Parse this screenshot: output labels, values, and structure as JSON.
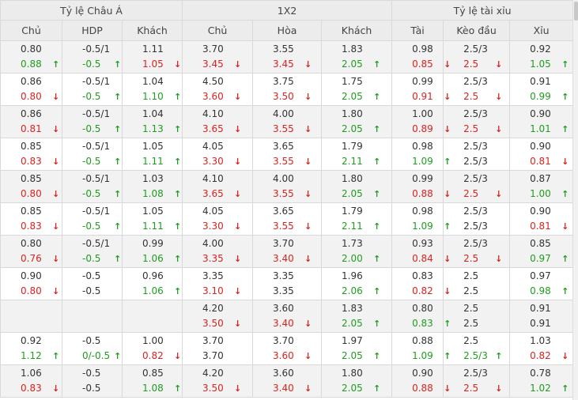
{
  "groups": [
    "Tỷ lệ Châu Á",
    "1X2",
    "Tỷ lệ tài xỉu"
  ],
  "columns": [
    "Chủ",
    "HDP",
    "Khách",
    "Chủ",
    "Hòa",
    "Khách",
    "Tài",
    "Kèo đầu",
    "Xỉu"
  ],
  "colors": {
    "up": "#1f9d1f",
    "down": "#d9231f",
    "header_bg": "#ececec",
    "row_alt_bg": "#f2f2f2",
    "border": "#d9d9d9"
  },
  "rows": [
    {
      "cells": [
        [
          {
            "v": "0.80",
            "c": ""
          },
          {
            "v": "0.88",
            "c": "up"
          }
        ],
        [
          {
            "v": "-0.5/1",
            "c": ""
          },
          {
            "v": "-0.5",
            "c": "up"
          }
        ],
        [
          {
            "v": "1.11",
            "c": ""
          },
          {
            "v": "1.05",
            "c": "down"
          }
        ],
        [
          {
            "v": "3.70",
            "c": ""
          },
          {
            "v": "3.45",
            "c": "down"
          }
        ],
        [
          {
            "v": "3.55",
            "c": ""
          },
          {
            "v": "3.45",
            "c": "down"
          }
        ],
        [
          {
            "v": "1.83",
            "c": ""
          },
          {
            "v": "2.05",
            "c": "up"
          }
        ],
        [
          {
            "v": "0.98",
            "c": ""
          },
          {
            "v": "0.85",
            "c": "down"
          }
        ],
        [
          {
            "v": "2.5/3",
            "c": ""
          },
          {
            "v": "2.5",
            "c": "down"
          }
        ],
        [
          {
            "v": "0.92",
            "c": ""
          },
          {
            "v": "1.05",
            "c": "up"
          }
        ]
      ]
    },
    {
      "cells": [
        [
          {
            "v": "0.86",
            "c": ""
          },
          {
            "v": "0.80",
            "c": "down"
          }
        ],
        [
          {
            "v": "-0.5/1",
            "c": ""
          },
          {
            "v": "-0.5",
            "c": "up"
          }
        ],
        [
          {
            "v": "1.04",
            "c": ""
          },
          {
            "v": "1.10",
            "c": "up"
          }
        ],
        [
          {
            "v": "4.50",
            "c": ""
          },
          {
            "v": "3.60",
            "c": "down"
          }
        ],
        [
          {
            "v": "3.75",
            "c": ""
          },
          {
            "v": "3.50",
            "c": "down"
          }
        ],
        [
          {
            "v": "1.75",
            "c": ""
          },
          {
            "v": "2.05",
            "c": "up"
          }
        ],
        [
          {
            "v": "0.99",
            "c": ""
          },
          {
            "v": "0.91",
            "c": "down"
          }
        ],
        [
          {
            "v": "2.5/3",
            "c": ""
          },
          {
            "v": "2.5",
            "c": "down"
          }
        ],
        [
          {
            "v": "0.91",
            "c": ""
          },
          {
            "v": "0.99",
            "c": "up"
          }
        ]
      ]
    },
    {
      "cells": [
        [
          {
            "v": "0.86",
            "c": ""
          },
          {
            "v": "0.81",
            "c": "down"
          }
        ],
        [
          {
            "v": "-0.5/1",
            "c": ""
          },
          {
            "v": "-0.5",
            "c": "up"
          }
        ],
        [
          {
            "v": "1.04",
            "c": ""
          },
          {
            "v": "1.13",
            "c": "up"
          }
        ],
        [
          {
            "v": "4.10",
            "c": ""
          },
          {
            "v": "3.65",
            "c": "down"
          }
        ],
        [
          {
            "v": "4.00",
            "c": ""
          },
          {
            "v": "3.55",
            "c": "down"
          }
        ],
        [
          {
            "v": "1.80",
            "c": ""
          },
          {
            "v": "2.05",
            "c": "up"
          }
        ],
        [
          {
            "v": "1.00",
            "c": ""
          },
          {
            "v": "0.89",
            "c": "down"
          }
        ],
        [
          {
            "v": "2.5/3",
            "c": ""
          },
          {
            "v": "2.5",
            "c": "down"
          }
        ],
        [
          {
            "v": "0.90",
            "c": ""
          },
          {
            "v": "1.01",
            "c": "up"
          }
        ]
      ]
    },
    {
      "cells": [
        [
          {
            "v": "0.85",
            "c": ""
          },
          {
            "v": "0.83",
            "c": "down"
          }
        ],
        [
          {
            "v": "-0.5/1",
            "c": ""
          },
          {
            "v": "-0.5",
            "c": "up"
          }
        ],
        [
          {
            "v": "1.05",
            "c": ""
          },
          {
            "v": "1.11",
            "c": "up"
          }
        ],
        [
          {
            "v": "4.05",
            "c": ""
          },
          {
            "v": "3.30",
            "c": "down"
          }
        ],
        [
          {
            "v": "3.65",
            "c": ""
          },
          {
            "v": "3.55",
            "c": "down"
          }
        ],
        [
          {
            "v": "1.79",
            "c": ""
          },
          {
            "v": "2.11",
            "c": "up"
          }
        ],
        [
          {
            "v": "0.98",
            "c": ""
          },
          {
            "v": "1.09",
            "c": "up"
          }
        ],
        [
          {
            "v": "2.5/3",
            "c": ""
          },
          {
            "v": "2.5/3",
            "c": ""
          }
        ],
        [
          {
            "v": "0.90",
            "c": ""
          },
          {
            "v": "0.81",
            "c": "down"
          }
        ]
      ]
    },
    {
      "cells": [
        [
          {
            "v": "0.85",
            "c": ""
          },
          {
            "v": "0.80",
            "c": "down"
          }
        ],
        [
          {
            "v": "-0.5/1",
            "c": ""
          },
          {
            "v": "-0.5",
            "c": "up"
          }
        ],
        [
          {
            "v": "1.03",
            "c": ""
          },
          {
            "v": "1.08",
            "c": "up"
          }
        ],
        [
          {
            "v": "4.10",
            "c": ""
          },
          {
            "v": "3.65",
            "c": "down"
          }
        ],
        [
          {
            "v": "4.00",
            "c": ""
          },
          {
            "v": "3.55",
            "c": "down"
          }
        ],
        [
          {
            "v": "1.80",
            "c": ""
          },
          {
            "v": "2.05",
            "c": "up"
          }
        ],
        [
          {
            "v": "0.99",
            "c": ""
          },
          {
            "v": "0.88",
            "c": "down"
          }
        ],
        [
          {
            "v": "2.5/3",
            "c": ""
          },
          {
            "v": "2.5",
            "c": "down"
          }
        ],
        [
          {
            "v": "0.87",
            "c": ""
          },
          {
            "v": "1.00",
            "c": "up"
          }
        ]
      ]
    },
    {
      "cells": [
        [
          {
            "v": "0.85",
            "c": ""
          },
          {
            "v": "0.83",
            "c": "down"
          }
        ],
        [
          {
            "v": "-0.5/1",
            "c": ""
          },
          {
            "v": "-0.5",
            "c": "up"
          }
        ],
        [
          {
            "v": "1.05",
            "c": ""
          },
          {
            "v": "1.11",
            "c": "up"
          }
        ],
        [
          {
            "v": "4.05",
            "c": ""
          },
          {
            "v": "3.30",
            "c": "down"
          }
        ],
        [
          {
            "v": "3.65",
            "c": ""
          },
          {
            "v": "3.55",
            "c": "down"
          }
        ],
        [
          {
            "v": "1.79",
            "c": ""
          },
          {
            "v": "2.11",
            "c": "up"
          }
        ],
        [
          {
            "v": "0.98",
            "c": ""
          },
          {
            "v": "1.09",
            "c": "up"
          }
        ],
        [
          {
            "v": "2.5/3",
            "c": ""
          },
          {
            "v": "2.5/3",
            "c": ""
          }
        ],
        [
          {
            "v": "0.90",
            "c": ""
          },
          {
            "v": "0.81",
            "c": "down"
          }
        ]
      ]
    },
    {
      "cells": [
        [
          {
            "v": "0.80",
            "c": ""
          },
          {
            "v": "0.76",
            "c": "down"
          }
        ],
        [
          {
            "v": "-0.5/1",
            "c": ""
          },
          {
            "v": "-0.5",
            "c": "up"
          }
        ],
        [
          {
            "v": "0.99",
            "c": ""
          },
          {
            "v": "1.06",
            "c": "up"
          }
        ],
        [
          {
            "v": "4.00",
            "c": ""
          },
          {
            "v": "3.35",
            "c": "down"
          }
        ],
        [
          {
            "v": "3.70",
            "c": ""
          },
          {
            "v": "3.40",
            "c": "down"
          }
        ],
        [
          {
            "v": "1.73",
            "c": ""
          },
          {
            "v": "2.00",
            "c": "up"
          }
        ],
        [
          {
            "v": "0.93",
            "c": ""
          },
          {
            "v": "0.84",
            "c": "down"
          }
        ],
        [
          {
            "v": "2.5/3",
            "c": ""
          },
          {
            "v": "2.5",
            "c": "down"
          }
        ],
        [
          {
            "v": "0.85",
            "c": ""
          },
          {
            "v": "0.97",
            "c": "up"
          }
        ]
      ]
    },
    {
      "cells": [
        [
          {
            "v": "0.90",
            "c": ""
          },
          {
            "v": "0.80",
            "c": "down"
          }
        ],
        [
          {
            "v": "-0.5",
            "c": ""
          },
          {
            "v": "-0.5",
            "c": ""
          }
        ],
        [
          {
            "v": "0.96",
            "c": ""
          },
          {
            "v": "1.06",
            "c": "up"
          }
        ],
        [
          {
            "v": "3.35",
            "c": ""
          },
          {
            "v": "3.10",
            "c": "down"
          }
        ],
        [
          {
            "v": "3.35",
            "c": ""
          },
          {
            "v": "3.35",
            "c": ""
          }
        ],
        [
          {
            "v": "1.96",
            "c": ""
          },
          {
            "v": "2.06",
            "c": "up"
          }
        ],
        [
          {
            "v": "0.83",
            "c": ""
          },
          {
            "v": "0.82",
            "c": "down"
          }
        ],
        [
          {
            "v": "2.5",
            "c": ""
          },
          {
            "v": "2.5",
            "c": ""
          }
        ],
        [
          {
            "v": "0.97",
            "c": ""
          },
          {
            "v": "0.98",
            "c": "up"
          }
        ]
      ]
    },
    {
      "cells": [
        [],
        [],
        [],
        [
          {
            "v": "4.20",
            "c": ""
          },
          {
            "v": "3.50",
            "c": "down"
          }
        ],
        [
          {
            "v": "3.60",
            "c": ""
          },
          {
            "v": "3.40",
            "c": "down"
          }
        ],
        [
          {
            "v": "1.83",
            "c": ""
          },
          {
            "v": "2.05",
            "c": "up"
          }
        ],
        [
          {
            "v": "0.80",
            "c": ""
          },
          {
            "v": "0.83",
            "c": "up"
          }
        ],
        [
          {
            "v": "2.5",
            "c": ""
          },
          {
            "v": "2.5",
            "c": ""
          }
        ],
        [
          {
            "v": "0.91",
            "c": ""
          },
          {
            "v": "0.91",
            "c": ""
          }
        ]
      ]
    },
    {
      "cells": [
        [
          {
            "v": "0.92",
            "c": ""
          },
          {
            "v": "1.12",
            "c": "up"
          }
        ],
        [
          {
            "v": "-0.5",
            "c": ""
          },
          {
            "v": "0/-0.5",
            "c": "up"
          }
        ],
        [
          {
            "v": "1.00",
            "c": ""
          },
          {
            "v": "0.82",
            "c": "down"
          }
        ],
        [
          {
            "v": "3.70",
            "c": ""
          },
          {
            "v": "3.70",
            "c": ""
          }
        ],
        [
          {
            "v": "3.70",
            "c": ""
          },
          {
            "v": "3.60",
            "c": "down"
          }
        ],
        [
          {
            "v": "1.97",
            "c": ""
          },
          {
            "v": "2.05",
            "c": "up"
          }
        ],
        [
          {
            "v": "0.88",
            "c": ""
          },
          {
            "v": "1.09",
            "c": "up"
          }
        ],
        [
          {
            "v": "2.5",
            "c": ""
          },
          {
            "v": "2.5/3",
            "c": "up"
          }
        ],
        [
          {
            "v": "1.03",
            "c": ""
          },
          {
            "v": "0.82",
            "c": "down"
          }
        ]
      ]
    },
    {
      "cells": [
        [
          {
            "v": "1.06",
            "c": ""
          },
          {
            "v": "0.83",
            "c": "down"
          }
        ],
        [
          {
            "v": "-0.5",
            "c": ""
          },
          {
            "v": "-0.5",
            "c": ""
          }
        ],
        [
          {
            "v": "0.85",
            "c": ""
          },
          {
            "v": "1.08",
            "c": "up"
          }
        ],
        [
          {
            "v": "4.20",
            "c": ""
          },
          {
            "v": "3.50",
            "c": "down"
          }
        ],
        [
          {
            "v": "3.60",
            "c": ""
          },
          {
            "v": "3.40",
            "c": "down"
          }
        ],
        [
          {
            "v": "1.80",
            "c": ""
          },
          {
            "v": "2.05",
            "c": "up"
          }
        ],
        [
          {
            "v": "0.90",
            "c": ""
          },
          {
            "v": "0.88",
            "c": "down"
          }
        ],
        [
          {
            "v": "2.5/3",
            "c": ""
          },
          {
            "v": "2.5",
            "c": "down"
          }
        ],
        [
          {
            "v": "0.78",
            "c": ""
          },
          {
            "v": "1.02",
            "c": "up"
          }
        ]
      ]
    }
  ]
}
